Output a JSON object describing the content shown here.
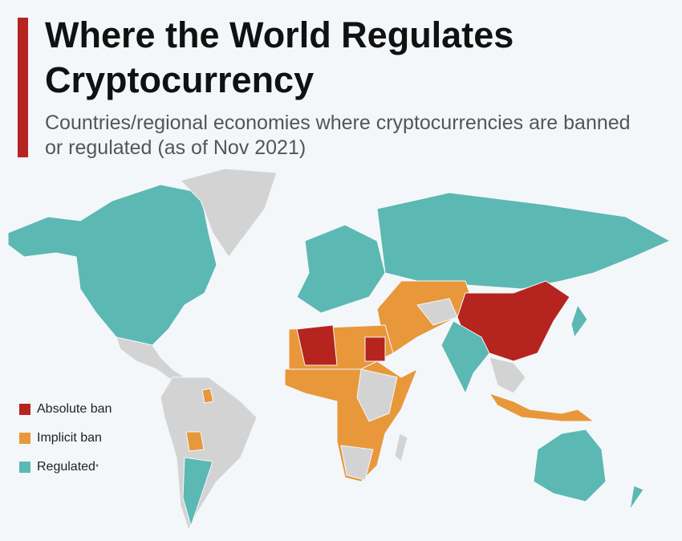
{
  "header": {
    "title": "Where the World Regulates Cryptocurrency",
    "subtitle": "Countries/regional economies where cryptocurrencies are banned or regulated (as of Nov 2021)"
  },
  "legend": {
    "items": [
      {
        "name": "Absolute ban",
        "color": "#b5241f"
      },
      {
        "name": "Implicit ban",
        "color": "#e8973a"
      },
      {
        "name": "Regulated",
        "color": "#5cb8b2",
        "note": "*"
      }
    ]
  }
}
